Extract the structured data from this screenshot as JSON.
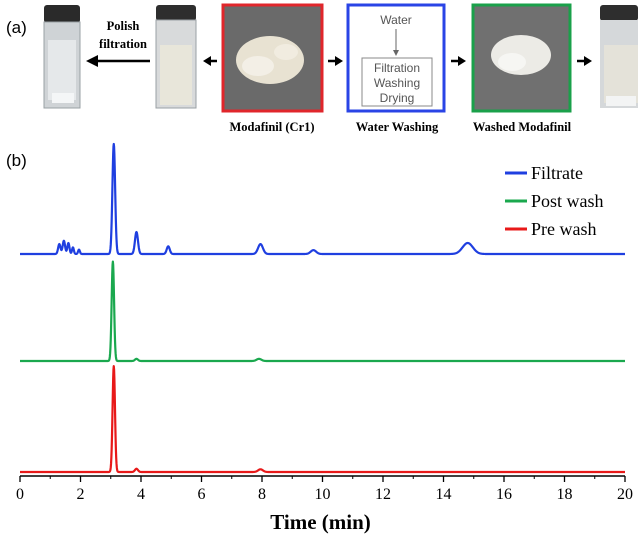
{
  "panel_a": {
    "letter": "(a)",
    "polish_filtration": [
      "Polish",
      "filtration"
    ],
    "modafinil_caption": "Modafinil (Cr1)",
    "water_washing_caption": "Water Washing",
    "washed_caption": "Washed Modafinil",
    "wash_box": {
      "water": "Water",
      "steps": [
        "Filtration",
        "Washing",
        "Drying"
      ]
    },
    "colors": {
      "red_frame": "#e0262b",
      "blue_frame": "#2a44e6",
      "green_frame": "#1aa04a"
    }
  },
  "panel_b": {
    "letter": "(b)"
  },
  "chart_data": {
    "type": "line",
    "xlabel": "Time (min)",
    "ylabel": "",
    "xlim": [
      0,
      20
    ],
    "xticks": [
      0,
      2,
      4,
      6,
      8,
      10,
      12,
      14,
      16,
      18,
      20
    ],
    "grid": false,
    "legend_position": "top-right",
    "series": [
      {
        "name": "Filtrate",
        "color": "#1f3fe0",
        "peaks": [
          [
            1.3,
            0.09,
            0.04
          ],
          [
            1.45,
            0.12,
            0.04
          ],
          [
            1.6,
            0.1,
            0.035
          ],
          [
            1.75,
            0.06,
            0.03
          ],
          [
            1.95,
            0.04,
            0.03
          ],
          [
            3.1,
            1.0,
            0.045
          ],
          [
            3.85,
            0.2,
            0.05
          ],
          [
            4.9,
            0.07,
            0.05
          ],
          [
            7.95,
            0.09,
            0.08
          ],
          [
            9.7,
            0.035,
            0.09
          ],
          [
            14.8,
            0.1,
            0.17
          ]
        ]
      },
      {
        "name": "Post wash",
        "color": "#1aa84e",
        "peaks": [
          [
            3.07,
            0.92,
            0.04
          ],
          [
            3.85,
            0.02,
            0.05
          ],
          [
            7.9,
            0.02,
            0.08
          ]
        ]
      },
      {
        "name": "Pre wash",
        "color": "#e81919",
        "peaks": [
          [
            3.1,
            0.98,
            0.04
          ],
          [
            3.85,
            0.03,
            0.05
          ],
          [
            7.95,
            0.025,
            0.08
          ]
        ]
      }
    ]
  }
}
